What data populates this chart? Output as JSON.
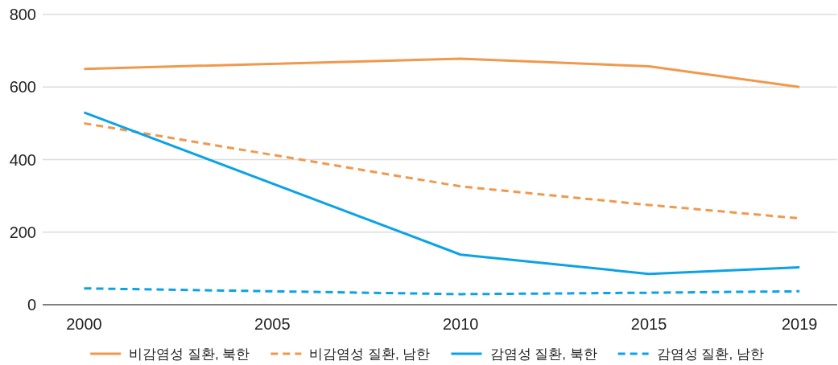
{
  "chart_data": {
    "type": "line",
    "x": [
      2000,
      2010,
      2015,
      2019
    ],
    "xlim": [
      1998.9,
      2020
    ],
    "xticks": [
      2000,
      2005,
      2010,
      2015,
      2019
    ],
    "ylim": [
      0,
      800
    ],
    "yticks": [
      0,
      200,
      400,
      600,
      800
    ],
    "grid": "y",
    "legend": "bottom",
    "series": [
      {
        "name": "비감염성 질환, 북한",
        "color": "#f0994c",
        "line_style": "solid",
        "values": [
          650,
          678,
          657,
          600
        ]
      },
      {
        "name": "비감염성 질환, 남한",
        "color": "#f0994c",
        "line_style": "dashed",
        "values": [
          500,
          326,
          275,
          238
        ]
      },
      {
        "name": "감염성 질환, 북한",
        "color": "#0ca2e6",
        "line_style": "solid",
        "values": [
          530,
          138,
          85,
          103
        ]
      },
      {
        "name": "감염성 질환, 남한",
        "color": "#0ca2e6",
        "line_style": "dashed",
        "values": [
          45,
          29,
          33,
          37
        ]
      }
    ]
  }
}
